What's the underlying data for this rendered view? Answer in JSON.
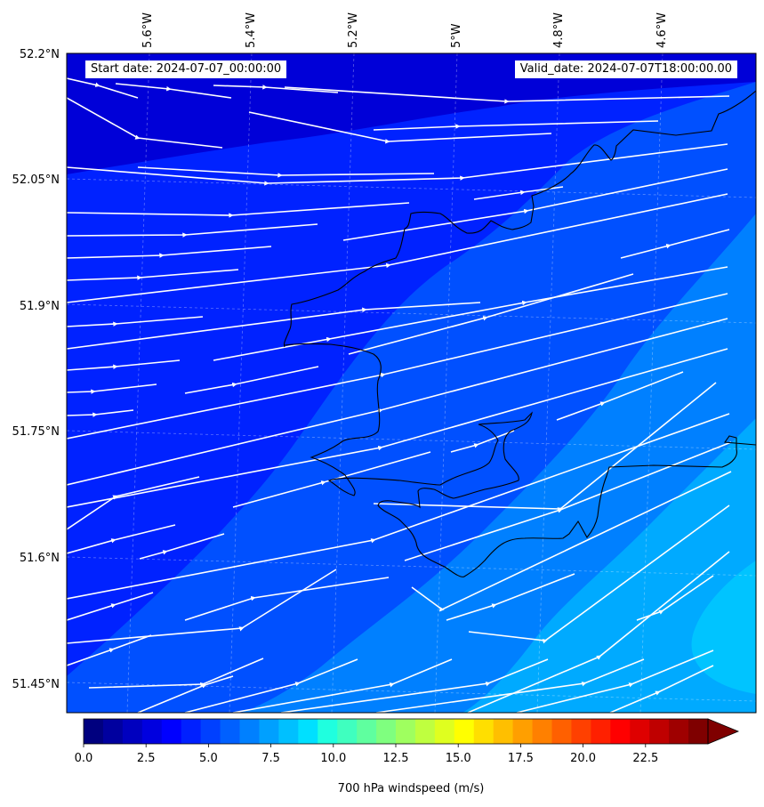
{
  "map": {
    "start_date": "Start date: 2024-07-07_00:00:00",
    "valid_date": "Valid_date: 2024-07-07T18:00:00.00",
    "lon_labels": [
      "5.6°W",
      "5.4°W",
      "5.2°W",
      "5°W",
      "4.8°W",
      "4.6°W"
    ],
    "lat_labels": [
      "52.2°N",
      "52.05°N",
      "51.9°N",
      "51.75°N",
      "51.6°N",
      "51.45°N"
    ],
    "field_colors": {
      "dark": "#0000d8",
      "mid": "#0022ff",
      "light": "#0050ff",
      "lighter": "#0080ff",
      "cyan": "#00aaff",
      "brightcyan": "#00c4ff"
    },
    "streamline_color": "#ffffff",
    "coastline_color": "#000000"
  },
  "colorbar": {
    "label": "700 hPa windspeed (m/s)",
    "ticks": [
      "0.0",
      "2.5",
      "5.0",
      "7.5",
      "10.0",
      "12.5",
      "15.0",
      "17.5",
      "20.0",
      "22.5"
    ],
    "min": 0,
    "max": 25,
    "extend": "max",
    "colormap": "jet",
    "colors": [
      "#00007f",
      "#00009f",
      "#0000bf",
      "#0000df",
      "#0000ff",
      "#0020ff",
      "#0040ff",
      "#0060ff",
      "#0080ff",
      "#00a0ff",
      "#00c0ff",
      "#00e0ff",
      "#1fffdf",
      "#3fffbf",
      "#5fff9f",
      "#7fff7f",
      "#9fff5f",
      "#bfff3f",
      "#dfff1f",
      "#ffff00",
      "#ffdf00",
      "#ffbf00",
      "#ff9f00",
      "#ff8000",
      "#ff6000",
      "#ff4000",
      "#ff2000",
      "#ff0000",
      "#df0000",
      "#bf0000",
      "#9f0000",
      "#7f0000"
    ]
  }
}
